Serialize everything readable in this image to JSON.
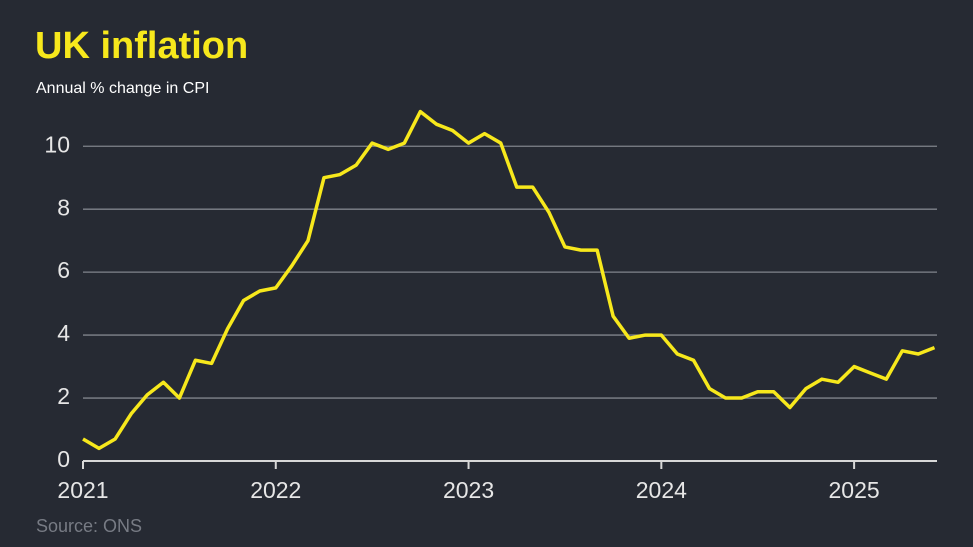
{
  "chart_data": {
    "type": "line",
    "title": "UK inflation",
    "subtitle": "Annual % change in CPI",
    "source": "Source: ONS",
    "x": [
      2021,
      2021.083,
      2021.167,
      2021.25,
      2021.333,
      2021.417,
      2021.5,
      2021.583,
      2021.667,
      2021.75,
      2021.833,
      2021.917,
      2022,
      2022.083,
      2022.167,
      2022.25,
      2022.333,
      2022.417,
      2022.5,
      2022.583,
      2022.667,
      2022.75,
      2022.833,
      2022.917,
      2023,
      2023.083,
      2023.167,
      2023.25,
      2023.333,
      2023.417,
      2023.5,
      2023.583,
      2023.667,
      2023.75,
      2023.833,
      2023.917,
      2024,
      2024.083,
      2024.167,
      2024.25,
      2024.333,
      2024.417,
      2024.5,
      2024.583,
      2024.667,
      2024.75,
      2024.833,
      2024.917,
      2025,
      2025.083,
      2025.167,
      2025.25,
      2025.333,
      2025.417
    ],
    "series": [
      {
        "name": "CPI",
        "color": "#f7e81c",
        "values": [
          0.7,
          0.4,
          0.7,
          1.5,
          2.1,
          2.5,
          2.0,
          3.2,
          3.1,
          4.2,
          5.1,
          5.4,
          5.5,
          6.2,
          7.0,
          9.0,
          9.1,
          9.4,
          10.1,
          9.9,
          10.1,
          11.1,
          10.7,
          10.5,
          10.1,
          10.4,
          10.1,
          8.7,
          8.7,
          7.9,
          6.8,
          6.7,
          6.7,
          4.6,
          3.9,
          4.0,
          4.0,
          3.4,
          3.2,
          2.3,
          2.0,
          2.0,
          2.2,
          2.2,
          1.7,
          2.3,
          2.6,
          2.5,
          3.0,
          2.8,
          2.6,
          3.5,
          3.4,
          3.6
        ]
      }
    ],
    "xlim": [
      2021,
      2025.43
    ],
    "xticks": [
      2021,
      2022,
      2023,
      2024,
      2025
    ],
    "ylim": [
      0,
      11.5
    ],
    "yticks": [
      0,
      2,
      4,
      6,
      8,
      10
    ],
    "grid": true
  }
}
